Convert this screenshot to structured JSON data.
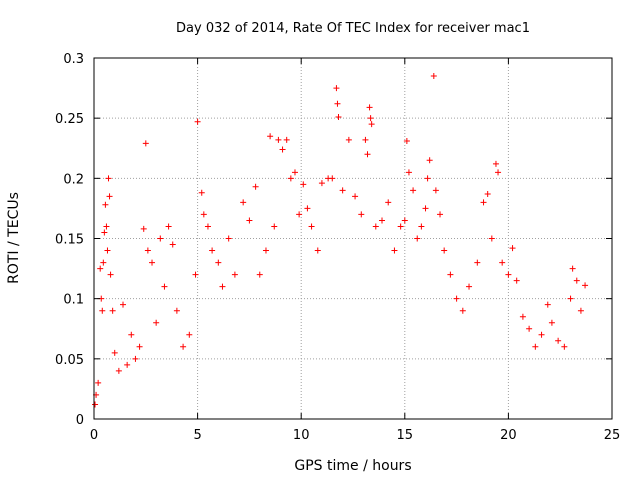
{
  "chart_data": {
    "type": "scatter",
    "title": "Day 032 of 2014, Rate Of TEC Index for receiver mac1",
    "xlabel": "GPS time / hours",
    "ylabel": "ROTI / TECUs",
    "xlim": [
      0,
      25
    ],
    "ylim": [
      0,
      0.3
    ],
    "x_ticks": [
      0,
      5,
      10,
      15,
      20,
      25
    ],
    "x_tick_labels": [
      "0",
      "5",
      "10",
      "15",
      "20",
      "25"
    ],
    "y_ticks": [
      0,
      0.05,
      0.1,
      0.15,
      0.2,
      0.25,
      0.3
    ],
    "y_tick_labels": [
      "0",
      "0.05",
      "0.1",
      "0.15",
      "0.2",
      "0.25",
      "0.3"
    ],
    "grid": true,
    "legend": "none",
    "marker": "+",
    "series": [
      {
        "name": "ROTI",
        "color": "#ff0000",
        "points": [
          [
            0.05,
            0.012
          ],
          [
            0.1,
            0.02
          ],
          [
            0.2,
            0.03
          ],
          [
            0.3,
            0.125
          ],
          [
            0.35,
            0.1
          ],
          [
            0.4,
            0.09
          ],
          [
            0.45,
            0.13
          ],
          [
            0.5,
            0.155
          ],
          [
            0.55,
            0.178
          ],
          [
            0.6,
            0.16
          ],
          [
            0.65,
            0.14
          ],
          [
            0.7,
            0.2
          ],
          [
            0.75,
            0.185
          ],
          [
            0.8,
            0.12
          ],
          [
            0.9,
            0.09
          ],
          [
            1.0,
            0.055
          ],
          [
            1.2,
            0.04
          ],
          [
            1.4,
            0.095
          ],
          [
            1.6,
            0.045
          ],
          [
            1.8,
            0.07
          ],
          [
            2.0,
            0.05
          ],
          [
            2.2,
            0.06
          ],
          [
            2.4,
            0.158
          ],
          [
            2.5,
            0.229
          ],
          [
            2.6,
            0.14
          ],
          [
            2.8,
            0.13
          ],
          [
            3.0,
            0.08
          ],
          [
            3.2,
            0.15
          ],
          [
            3.4,
            0.11
          ],
          [
            3.6,
            0.16
          ],
          [
            3.8,
            0.145
          ],
          [
            4.0,
            0.09
          ],
          [
            4.3,
            0.06
          ],
          [
            4.6,
            0.07
          ],
          [
            4.9,
            0.12
          ],
          [
            5.0,
            0.247
          ],
          [
            5.2,
            0.188
          ],
          [
            5.3,
            0.17
          ],
          [
            5.5,
            0.16
          ],
          [
            5.7,
            0.14
          ],
          [
            6.0,
            0.13
          ],
          [
            6.2,
            0.11
          ],
          [
            6.5,
            0.15
          ],
          [
            6.8,
            0.12
          ],
          [
            7.2,
            0.18
          ],
          [
            7.5,
            0.165
          ],
          [
            7.8,
            0.193
          ],
          [
            8.0,
            0.12
          ],
          [
            8.3,
            0.14
          ],
          [
            8.5,
            0.235
          ],
          [
            8.7,
            0.16
          ],
          [
            8.9,
            0.232
          ],
          [
            9.1,
            0.224
          ],
          [
            9.3,
            0.232
          ],
          [
            9.5,
            0.2
          ],
          [
            9.7,
            0.205
          ],
          [
            9.9,
            0.17
          ],
          [
            10.1,
            0.195
          ],
          [
            10.3,
            0.175
          ],
          [
            10.5,
            0.16
          ],
          [
            10.8,
            0.14
          ],
          [
            11.0,
            0.196
          ],
          [
            11.3,
            0.2
          ],
          [
            11.5,
            0.2
          ],
          [
            11.7,
            0.275
          ],
          [
            11.75,
            0.262
          ],
          [
            11.8,
            0.251
          ],
          [
            12.0,
            0.19
          ],
          [
            12.3,
            0.232
          ],
          [
            12.6,
            0.185
          ],
          [
            12.9,
            0.17
          ],
          [
            13.1,
            0.232
          ],
          [
            13.2,
            0.22
          ],
          [
            13.3,
            0.259
          ],
          [
            13.35,
            0.25
          ],
          [
            13.4,
            0.245
          ],
          [
            13.6,
            0.16
          ],
          [
            13.9,
            0.165
          ],
          [
            14.2,
            0.18
          ],
          [
            14.5,
            0.14
          ],
          [
            14.8,
            0.16
          ],
          [
            15.0,
            0.165
          ],
          [
            15.1,
            0.231
          ],
          [
            15.2,
            0.205
          ],
          [
            15.4,
            0.19
          ],
          [
            15.6,
            0.15
          ],
          [
            15.8,
            0.16
          ],
          [
            16.0,
            0.175
          ],
          [
            16.1,
            0.2
          ],
          [
            16.2,
            0.215
          ],
          [
            16.4,
            0.285
          ],
          [
            16.5,
            0.19
          ],
          [
            16.7,
            0.17
          ],
          [
            16.9,
            0.14
          ],
          [
            17.2,
            0.12
          ],
          [
            17.5,
            0.1
          ],
          [
            17.8,
            0.09
          ],
          [
            18.1,
            0.11
          ],
          [
            18.5,
            0.13
          ],
          [
            18.8,
            0.18
          ],
          [
            19.0,
            0.187
          ],
          [
            19.2,
            0.15
          ],
          [
            19.4,
            0.212
          ],
          [
            19.5,
            0.205
          ],
          [
            19.7,
            0.13
          ],
          [
            20.0,
            0.12
          ],
          [
            20.2,
            0.142
          ],
          [
            20.4,
            0.115
          ],
          [
            20.7,
            0.085
          ],
          [
            21.0,
            0.075
          ],
          [
            21.3,
            0.06
          ],
          [
            21.6,
            0.07
          ],
          [
            21.9,
            0.095
          ],
          [
            22.1,
            0.08
          ],
          [
            22.4,
            0.065
          ],
          [
            22.7,
            0.06
          ],
          [
            23.0,
            0.1
          ],
          [
            23.1,
            0.125
          ],
          [
            23.3,
            0.115
          ],
          [
            23.5,
            0.09
          ],
          [
            23.7,
            0.111
          ]
        ]
      }
    ]
  }
}
